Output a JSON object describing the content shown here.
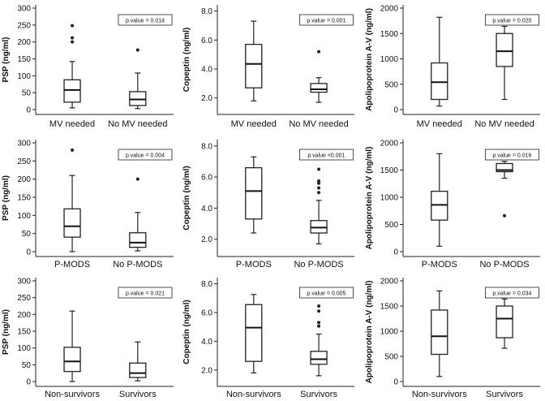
{
  "figure_title": "",
  "chart_data": [
    {
      "type": "box",
      "row": 1,
      "col": 1,
      "ylabel": "PSP (ng/ml)",
      "ylim": [
        0,
        300
      ],
      "yticks": [
        0,
        50,
        100,
        150,
        200,
        250,
        300
      ],
      "ytick_labels": [
        "0",
        "50",
        "100",
        "150",
        "200",
        "250",
        "300"
      ],
      "categories": [
        "MV needed",
        "No MV needed"
      ],
      "p_label": "p.value = 0.014",
      "boxes": [
        {
          "min": 5,
          "q1": 22,
          "median": 58,
          "q3": 88,
          "max": 142,
          "outliers": [
            200,
            212,
            248
          ]
        },
        {
          "min": 3,
          "q1": 12,
          "median": 30,
          "q3": 53,
          "max": 108,
          "outliers": [
            176
          ]
        }
      ]
    },
    {
      "type": "box",
      "row": 1,
      "col": 2,
      "ylabel": "Copeptin (ng/ml)",
      "ylim": [
        1.2,
        8.2
      ],
      "yticks": [
        2,
        4,
        6,
        8
      ],
      "ytick_labels": [
        "2.0",
        "4.0",
        "6.0",
        "8.0"
      ],
      "categories": [
        "MV needed",
        "No MV needed"
      ],
      "p_label": "p.value = 0.001",
      "boxes": [
        {
          "min": 1.8,
          "q1": 2.7,
          "median": 4.35,
          "q3": 5.7,
          "max": 7.3,
          "outliers": []
        },
        {
          "min": 1.7,
          "q1": 2.4,
          "median": 2.6,
          "q3": 3.0,
          "max": 3.4,
          "outliers": [
            5.2
          ]
        }
      ]
    },
    {
      "type": "box",
      "row": 1,
      "col": 3,
      "ylabel": "Apolipoprotein A-V (ng/ml)",
      "ylim": [
        0,
        2000
      ],
      "yticks": [
        0,
        500,
        1000,
        1500,
        2000
      ],
      "ytick_labels": [
        "0",
        "500",
        "1000",
        "1500",
        "2000"
      ],
      "categories": [
        "MV needed",
        "No MV needed"
      ],
      "p_label": "p.value = 0.020",
      "boxes": [
        {
          "min": 70,
          "q1": 200,
          "median": 540,
          "q3": 920,
          "max": 1820,
          "outliers": []
        },
        {
          "min": 200,
          "q1": 850,
          "median": 1150,
          "q3": 1500,
          "max": 1640,
          "outliers": []
        }
      ]
    },
    {
      "type": "box",
      "row": 2,
      "col": 1,
      "ylabel": "PSP (ng/ml)",
      "ylim": [
        0,
        300
      ],
      "yticks": [
        0,
        50,
        100,
        150,
        200,
        250,
        300
      ],
      "ytick_labels": [
        "0",
        "50",
        "100",
        "150",
        "200",
        "250",
        "300"
      ],
      "categories": [
        "P-MODS",
        "No P-MODS"
      ],
      "p_label": "p.value = 0.004",
      "boxes": [
        {
          "min": 0,
          "q1": 40,
          "median": 70,
          "q3": 118,
          "max": 210,
          "outliers": [
            280
          ]
        },
        {
          "min": 2,
          "q1": 12,
          "median": 25,
          "q3": 52,
          "max": 108,
          "outliers": [
            200
          ]
        }
      ]
    },
    {
      "type": "box",
      "row": 2,
      "col": 2,
      "ylabel": "Copeptin (ng/ml)",
      "ylim": [
        1.2,
        8.2
      ],
      "yticks": [
        2,
        4,
        6,
        8
      ],
      "ytick_labels": [
        "2.0",
        "4.0",
        "6.0",
        "8.0"
      ],
      "categories": [
        "P-MODS",
        "No P-MODS"
      ],
      "p_label": "p.value <0.001",
      "boxes": [
        {
          "min": 2.4,
          "q1": 3.3,
          "median": 5.1,
          "q3": 6.6,
          "max": 7.3,
          "outliers": []
        },
        {
          "min": 1.7,
          "q1": 2.4,
          "median": 2.75,
          "q3": 3.2,
          "max": 4.5,
          "outliers": [
            5.0,
            5.3,
            5.6,
            5.75,
            6.5
          ]
        }
      ]
    },
    {
      "type": "box",
      "row": 2,
      "col": 3,
      "ylabel": "Apolipoprotein A-V (ng/ml)",
      "ylim": [
        0,
        2000
      ],
      "yticks": [
        0,
        500,
        1000,
        1500,
        2000
      ],
      "ytick_labels": [
        "0",
        "500",
        "1000",
        "1500",
        "2000"
      ],
      "categories": [
        "P-MODS",
        "No P-MODS"
      ],
      "p_label": "p.value = 0.016",
      "boxes": [
        {
          "min": 100,
          "q1": 580,
          "median": 860,
          "q3": 1110,
          "max": 1800,
          "outliers": []
        },
        {
          "min": 1350,
          "q1": 1470,
          "median": 1500,
          "q3": 1620,
          "max": 1660,
          "outliers": [
            660
          ]
        }
      ]
    },
    {
      "type": "box",
      "row": 3,
      "col": 1,
      "ylabel": "PSP (ng/ml)",
      "ylim": [
        0,
        300
      ],
      "yticks": [
        0,
        50,
        100,
        150,
        200,
        250,
        300
      ],
      "ytick_labels": [
        "0",
        "50",
        "100",
        "150",
        "200",
        "250",
        "300"
      ],
      "categories": [
        "Non-survivors",
        "Survivors"
      ],
      "p_label": "p.value = 0.021",
      "boxes": [
        {
          "min": 0,
          "q1": 30,
          "median": 60,
          "q3": 102,
          "max": 210,
          "outliers": []
        },
        {
          "min": 2,
          "q1": 12,
          "median": 25,
          "q3": 55,
          "max": 118,
          "outliers": []
        }
      ]
    },
    {
      "type": "box",
      "row": 3,
      "col": 2,
      "ylabel": "Copeptin (ng/ml)",
      "ylim": [
        1.2,
        8.2
      ],
      "yticks": [
        2,
        4,
        6,
        8
      ],
      "ytick_labels": [
        "2.0",
        "4.0",
        "6.0",
        "8.0"
      ],
      "categories": [
        "Non-survivors",
        "Survivors"
      ],
      "p_label": "p.value = 0.005",
      "boxes": [
        {
          "min": 1.8,
          "q1": 2.6,
          "median": 4.95,
          "q3": 6.55,
          "max": 7.25,
          "outliers": []
        },
        {
          "min": 1.6,
          "q1": 2.4,
          "median": 2.75,
          "q3": 3.3,
          "max": 4.5,
          "outliers": [
            5.05,
            5.3,
            6.1,
            6.45
          ]
        }
      ]
    },
    {
      "type": "box",
      "row": 3,
      "col": 3,
      "ylabel": "Apolipoprotein A-V (ng/ml)",
      "ylim": [
        0,
        2000
      ],
      "yticks": [
        0,
        500,
        1000,
        1500,
        2000
      ],
      "ytick_labels": [
        "0",
        "500",
        "1000",
        "1500",
        "2000"
      ],
      "categories": [
        "Non-survivors",
        "Survivors"
      ],
      "p_label": "p.value = 0.034",
      "boxes": [
        {
          "min": 100,
          "q1": 540,
          "median": 900,
          "q3": 1420,
          "max": 1800,
          "outliers": []
        },
        {
          "min": 660,
          "q1": 870,
          "median": 1250,
          "q3": 1500,
          "max": 1640,
          "outliers": []
        }
      ]
    }
  ]
}
